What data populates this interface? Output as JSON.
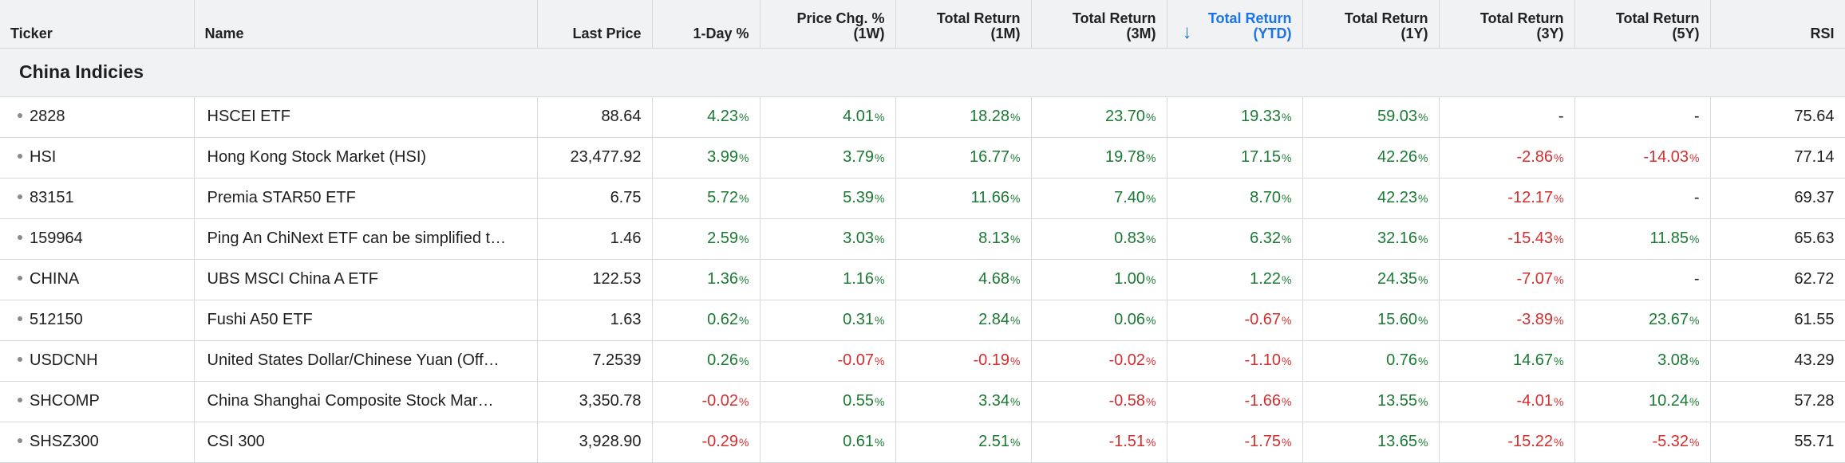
{
  "columns": [
    {
      "key": "ticker",
      "line1": "Ticker",
      "line2": ""
    },
    {
      "key": "name",
      "line1": "Name",
      "line2": ""
    },
    {
      "key": "last_price",
      "line1": "Last Price",
      "line2": ""
    },
    {
      "key": "day_pct",
      "line1": "1-Day %",
      "line2": ""
    },
    {
      "key": "chg_1w",
      "line1": "Price Chg. %",
      "line2": "(1W)"
    },
    {
      "key": "tr_1m",
      "line1": "Total Return",
      "line2": "(1M)"
    },
    {
      "key": "tr_3m",
      "line1": "Total Return",
      "line2": "(3M)"
    },
    {
      "key": "tr_ytd",
      "line1": "Total Return",
      "line2": "(YTD)"
    },
    {
      "key": "tr_1y",
      "line1": "Total Return",
      "line2": "(1Y)"
    },
    {
      "key": "tr_3y",
      "line1": "Total Return",
      "line2": "(3Y)"
    },
    {
      "key": "tr_5y",
      "line1": "Total Return",
      "line2": "(5Y)"
    },
    {
      "key": "rsi",
      "line1": "RSI",
      "line2": ""
    }
  ],
  "sort": {
    "column": "tr_ytd",
    "direction": "desc",
    "arrow": "↓",
    "color": "#1a73e8"
  },
  "group": {
    "title": "China Indicies"
  },
  "colors": {
    "positive": "#1a7a33",
    "negative": "#d32f2f",
    "header_bg": "#f1f2f4"
  },
  "pct_symbol": "%",
  "rows": [
    {
      "ticker": "2828",
      "name": "HSCEI ETF",
      "last_price": "88.64",
      "day_pct": "4.23",
      "chg_1w": "4.01",
      "tr_1m": "18.28",
      "tr_3m": "23.70",
      "tr_ytd": "19.33",
      "tr_1y": "59.03",
      "tr_3y": "-",
      "tr_5y": "-",
      "rsi": "75.64"
    },
    {
      "ticker": "HSI",
      "name": "Hong Kong Stock Market (HSI)",
      "last_price": "23,477.92",
      "day_pct": "3.99",
      "chg_1w": "3.79",
      "tr_1m": "16.77",
      "tr_3m": "19.78",
      "tr_ytd": "17.15",
      "tr_1y": "42.26",
      "tr_3y": "-2.86",
      "tr_5y": "-14.03",
      "rsi": "77.14"
    },
    {
      "ticker": "83151",
      "name": "Premia STAR50 ETF",
      "last_price": "6.75",
      "day_pct": "5.72",
      "chg_1w": "5.39",
      "tr_1m": "11.66",
      "tr_3m": "7.40",
      "tr_ytd": "8.70",
      "tr_1y": "42.23",
      "tr_3y": "-12.17",
      "tr_5y": "-",
      "rsi": "69.37"
    },
    {
      "ticker": "159964",
      "name": "Ping An ChiNext ETF can be simplified t…",
      "last_price": "1.46",
      "day_pct": "2.59",
      "chg_1w": "3.03",
      "tr_1m": "8.13",
      "tr_3m": "0.83",
      "tr_ytd": "6.32",
      "tr_1y": "32.16",
      "tr_3y": "-15.43",
      "tr_5y": "11.85",
      "rsi": "65.63"
    },
    {
      "ticker": "CHINA",
      "name": "UBS MSCI China A ETF",
      "last_price": "122.53",
      "day_pct": "1.36",
      "chg_1w": "1.16",
      "tr_1m": "4.68",
      "tr_3m": "1.00",
      "tr_ytd": "1.22",
      "tr_1y": "24.35",
      "tr_3y": "-7.07",
      "tr_5y": "-",
      "rsi": "62.72"
    },
    {
      "ticker": "512150",
      "name": "Fushi A50 ETF",
      "last_price": "1.63",
      "day_pct": "0.62",
      "chg_1w": "0.31",
      "tr_1m": "2.84",
      "tr_3m": "0.06",
      "tr_ytd": "-0.67",
      "tr_1y": "15.60",
      "tr_3y": "-3.89",
      "tr_5y": "23.67",
      "rsi": "61.55"
    },
    {
      "ticker": "USDCNH",
      "name": "United States Dollar/Chinese Yuan (Off…",
      "last_price": "7.2539",
      "day_pct": "0.26",
      "chg_1w": "-0.07",
      "tr_1m": "-0.19",
      "tr_3m": "-0.02",
      "tr_ytd": "-1.10",
      "tr_1y": "0.76",
      "tr_3y": "14.67",
      "tr_5y": "3.08",
      "rsi": "43.29"
    },
    {
      "ticker": "SHCOMP",
      "name": "China Shanghai Composite Stock Mar…",
      "last_price": "3,350.78",
      "day_pct": "-0.02",
      "chg_1w": "0.55",
      "tr_1m": "3.34",
      "tr_3m": "-0.58",
      "tr_ytd": "-1.66",
      "tr_1y": "13.55",
      "tr_3y": "-4.01",
      "tr_5y": "10.24",
      "rsi": "57.28"
    },
    {
      "ticker": "SHSZ300",
      "name": "CSI 300",
      "last_price": "3,928.90",
      "day_pct": "-0.29",
      "chg_1w": "0.61",
      "tr_1m": "2.51",
      "tr_3m": "-1.51",
      "tr_ytd": "-1.75",
      "tr_1y": "13.65",
      "tr_3y": "-15.22",
      "tr_5y": "-5.32",
      "rsi": "55.71"
    }
  ]
}
